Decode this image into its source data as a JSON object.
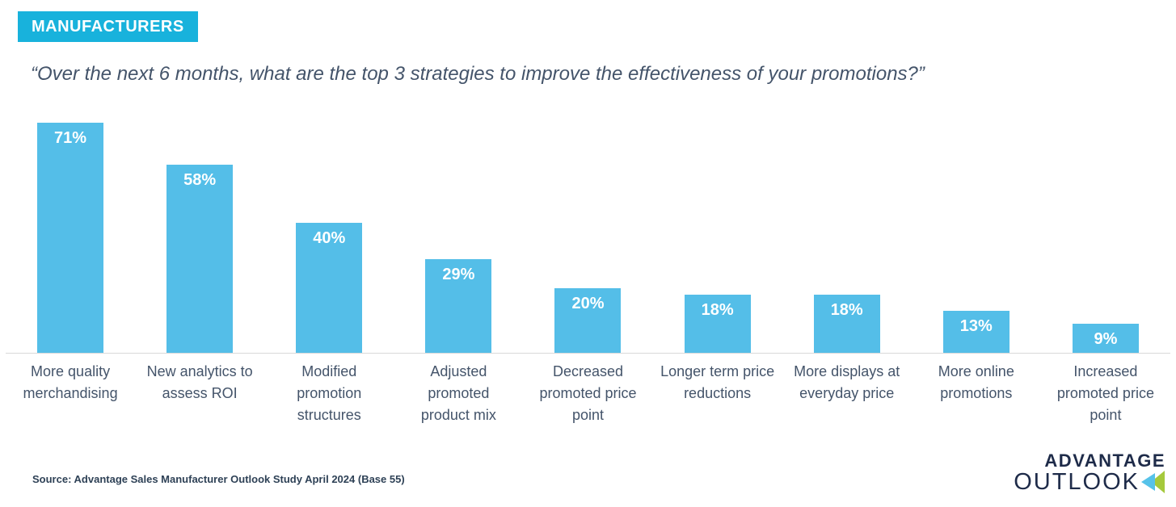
{
  "badge": {
    "label": "MANUFACTURERS",
    "background": "#18B2DC",
    "text_color": "#FFFFFF"
  },
  "question": "“Over the next 6 months, what are the top 3 strategies to improve the effectiveness of your promotions?”",
  "chart_data": {
    "type": "bar",
    "title": "",
    "xlabel": "",
    "ylabel": "",
    "categories": [
      "More quality merchandising",
      "New analytics to assess ROI",
      "Modified promotion structures",
      "Adjusted promoted product mix",
      "Decreased promoted price point",
      "Longer term price reductions",
      "More displays at everyday price",
      "More online promotions",
      "Increased promoted price point"
    ],
    "categories_display": [
      [
        "More quality",
        "merchandising"
      ],
      [
        "New analytics to",
        "assess ROI"
      ],
      [
        "Modified",
        "promotion",
        "structures"
      ],
      [
        "Adjusted",
        "promoted",
        "product mix"
      ],
      [
        "Decreased",
        "promoted price",
        "point"
      ],
      [
        "Longer term price",
        "reductions"
      ],
      [
        "More displays at",
        "everyday price"
      ],
      [
        "More online",
        "promotions"
      ],
      [
        "Increased",
        "promoted price",
        "point"
      ]
    ],
    "values": [
      71,
      58,
      40,
      29,
      20,
      18,
      18,
      13,
      9
    ],
    "unit": "%",
    "ylim": [
      0,
      75
    ],
    "grid": false,
    "legend": false,
    "data_label_position": "inside-top",
    "bar_color": "#54BEE8",
    "data_label_color": "#FFFFFF",
    "axis_line_color": "#D9D9D9",
    "category_label_color": "#44546A"
  },
  "footer": {
    "source": "Source: Advantage Sales Manufacturer Outlook Study April 2024 (Base 55)"
  },
  "logo": {
    "line1": "ADVANTAGE",
    "line2": "OUTLOOK",
    "text_color": "#1E2B49",
    "chevron_blue": "#56C2E9",
    "chevron_green": "#A5C93C"
  }
}
